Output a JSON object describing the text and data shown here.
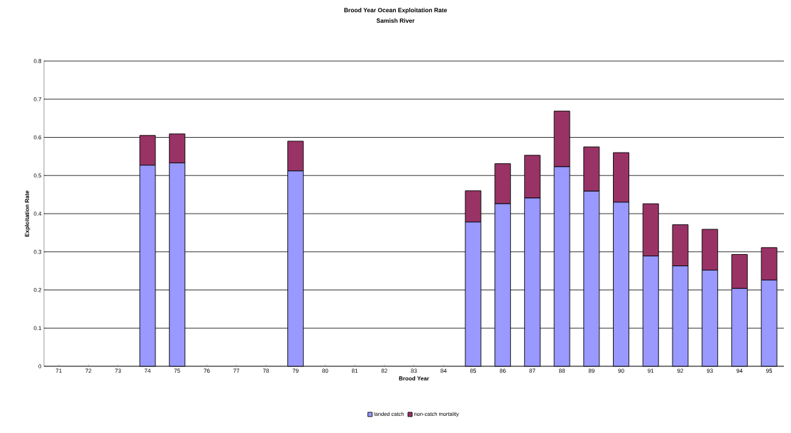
{
  "chart_data": {
    "type": "bar",
    "title": "Brood Year Ocean Exploitation Rate",
    "subtitle": "Samish River",
    "xlabel": "Brood Year",
    "ylabel": "Exploitation Rate",
    "categories": [
      "71",
      "72",
      "73",
      "74",
      "75",
      "76",
      "77",
      "78",
      "79",
      "80",
      "81",
      "82",
      "83",
      "84",
      "85",
      "86",
      "87",
      "88",
      "89",
      "90",
      "91",
      "92",
      "93",
      "94",
      "95"
    ],
    "series": [
      {
        "name": "landed catch",
        "color": "#9999ff",
        "values": [
          null,
          null,
          null,
          0.527,
          0.533,
          null,
          null,
          null,
          0.512,
          null,
          null,
          null,
          null,
          null,
          0.378,
          0.426,
          0.441,
          0.523,
          0.459,
          0.43,
          0.289,
          0.263,
          0.252,
          0.204,
          0.226
        ]
      },
      {
        "name": "non-catch mortality",
        "color": "#993366",
        "values": [
          null,
          null,
          null,
          0.078,
          0.076,
          null,
          null,
          null,
          0.078,
          null,
          null,
          null,
          null,
          null,
          0.082,
          0.105,
          0.112,
          0.146,
          0.116,
          0.13,
          0.137,
          0.108,
          0.107,
          0.089,
          0.085
        ]
      }
    ],
    "stacked": true,
    "ylim": [
      0,
      0.8
    ],
    "yticks": [
      0,
      0.1,
      0.2,
      0.3,
      0.4,
      0.5,
      0.6,
      0.7,
      0.8
    ],
    "grid": "y",
    "legend": "bottom"
  }
}
